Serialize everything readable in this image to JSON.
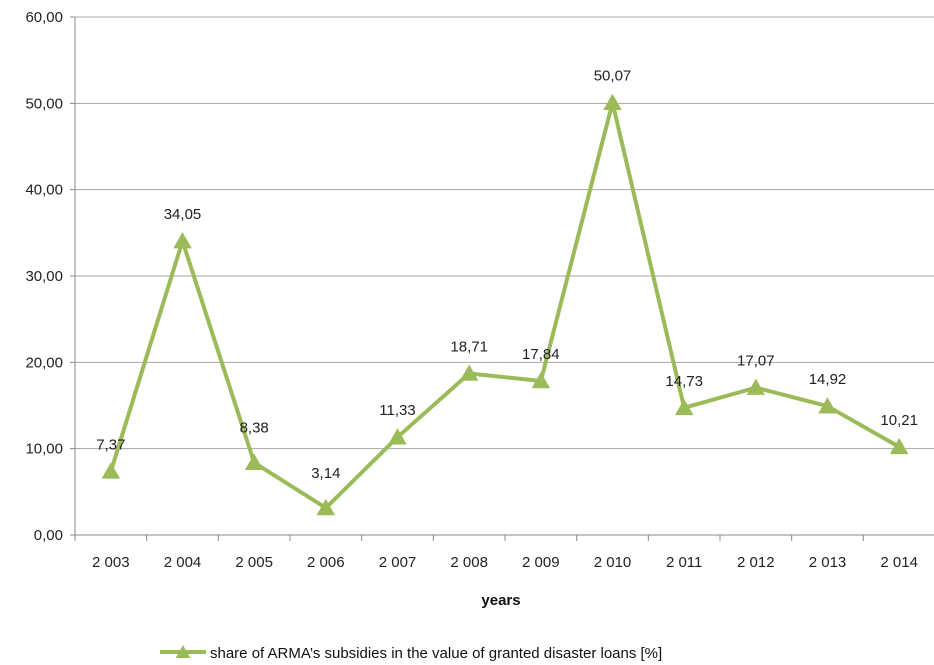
{
  "chart_data": {
    "type": "line",
    "title": "",
    "xlabel": "years",
    "ylabel": "",
    "categories": [
      "2 003",
      "2 004",
      "2 005",
      "2 006",
      "2 007",
      "2 008",
      "2 009",
      "2 010",
      "2 011",
      "2 012",
      "2 013",
      "2 014"
    ],
    "series": [
      {
        "name": "share of ARMA’s subsidies in the value of granted disaster loans [%]",
        "values": [
          7.37,
          34.05,
          8.38,
          3.14,
          11.33,
          18.71,
          17.84,
          50.07,
          14.73,
          17.07,
          14.92,
          10.21
        ],
        "value_labels": [
          "7,37",
          "34,05",
          "8,38",
          "3,14",
          "11,33",
          "18,71",
          "17,84",
          "50,07",
          "14,73",
          "17,07",
          "14,92",
          "10,21"
        ],
        "color": "#9BBB59",
        "marker": "triangle"
      }
    ],
    "ylim": [
      0,
      60
    ],
    "y_ticks": [
      0,
      10,
      20,
      30,
      40,
      50,
      60
    ],
    "y_tick_labels": [
      "0,00",
      "10,00",
      "20,00",
      "30,00",
      "40,00",
      "50,00",
      "60,00"
    ],
    "grid": "horizontal",
    "gridline_color": "#A6A6A6",
    "legend_position": "bottom"
  }
}
